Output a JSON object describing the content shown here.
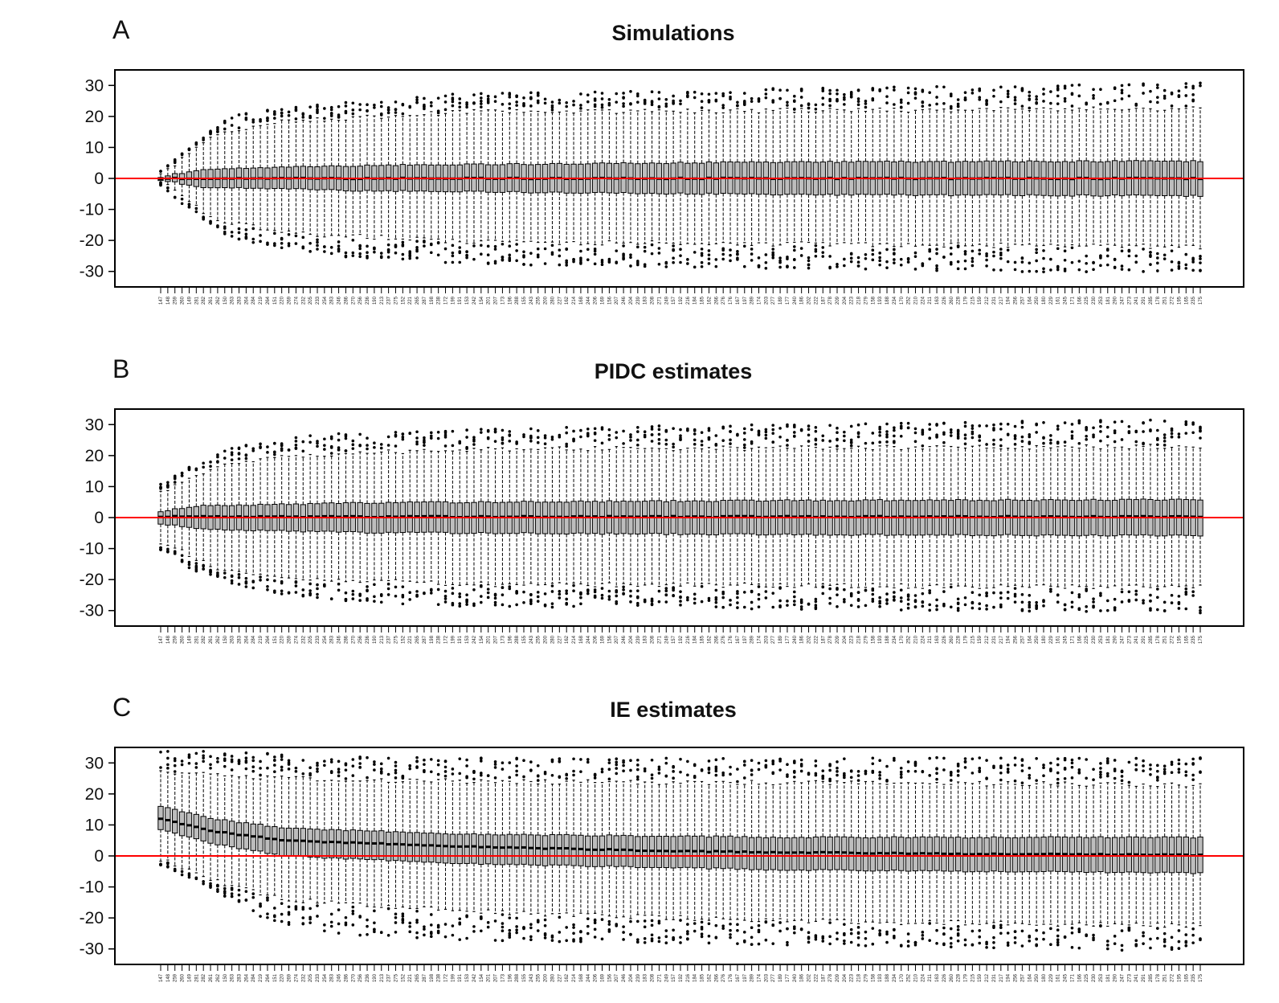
{
  "chart_data": [
    {
      "type": "boxplot",
      "panel_label": "A",
      "title": "Simulations",
      "xlabel": "",
      "ylabel": "",
      "ylim": [
        -35,
        35
      ],
      "yticks": [
        30,
        20,
        10,
        0,
        -10,
        -20,
        -30
      ],
      "ytick_labels": [
        "30",
        "20",
        "10",
        "0",
        "-10",
        "-20",
        "-30"
      ],
      "reference_line": {
        "y": 0,
        "color": "#ff0000"
      },
      "categories": [
        "147",
        "148",
        "259",
        "260",
        "149",
        "281",
        "282",
        "261",
        "262",
        "150",
        "263",
        "283",
        "264",
        "284",
        "219",
        "264",
        "151",
        "220",
        "269",
        "274",
        "232",
        "205",
        "233",
        "254",
        "283",
        "246",
        "286",
        "270",
        "256",
        "236",
        "190",
        "213",
        "237",
        "275",
        "152",
        "221",
        "265",
        "287",
        "198",
        "238",
        "172",
        "199",
        "191",
        "153",
        "242",
        "154",
        "201",
        "207",
        "173",
        "196",
        "288",
        "155",
        "243",
        "255",
        "200",
        "280",
        "227",
        "162",
        "214",
        "168",
        "244",
        "206",
        "169",
        "156",
        "207",
        "246",
        "204",
        "239",
        "183",
        "208",
        "271",
        "249",
        "157",
        "192",
        "216",
        "184",
        "185",
        "162",
        "266",
        "276",
        "176",
        "167",
        "197",
        "289",
        "174",
        "203",
        "277",
        "189",
        "177",
        "240",
        "186",
        "202",
        "222",
        "187",
        "278",
        "209",
        "204",
        "223",
        "218",
        "279",
        "158",
        "193",
        "188",
        "234",
        "170",
        "252",
        "210",
        "224",
        "211",
        "163",
        "226",
        "260",
        "228",
        "179",
        "215",
        "159",
        "212",
        "231",
        "217",
        "194",
        "256",
        "257",
        "164",
        "250",
        "180",
        "229",
        "161",
        "245",
        "171",
        "166",
        "225",
        "230",
        "253",
        "181",
        "290",
        "247",
        "273",
        "241",
        "291",
        "285",
        "178",
        "251",
        "272",
        "195",
        "165",
        "235",
        "175"
      ],
      "envelope": {
        "median": [
          [
            0,
            0
          ],
          [
            1,
            0
          ]
        ],
        "q3": [
          [
            0,
            0.5
          ],
          [
            0.04,
            3.0
          ],
          [
            0.2,
            4.2
          ],
          [
            0.6,
            5.3
          ],
          [
            1,
            5.6
          ]
        ],
        "q1": [
          [
            0,
            -0.5
          ],
          [
            0.04,
            -2.8
          ],
          [
            0.2,
            -4.0
          ],
          [
            0.6,
            -5.2
          ],
          [
            1,
            -5.6
          ]
        ],
        "whisker_hi": [
          [
            0,
            1
          ],
          [
            0.02,
            6
          ],
          [
            0.05,
            14
          ],
          [
            0.12,
            18.5
          ],
          [
            0.3,
            21.5
          ],
          [
            1,
            22.5
          ]
        ],
        "whisker_lo": [
          [
            0,
            -1
          ],
          [
            0.02,
            -6
          ],
          [
            0.05,
            -13
          ],
          [
            0.12,
            -17.5
          ],
          [
            0.3,
            -20.5
          ],
          [
            1,
            -22
          ]
        ],
        "out_hi_max": [
          [
            0,
            1.5
          ],
          [
            0.03,
            10
          ],
          [
            0.07,
            20
          ],
          [
            0.15,
            23
          ],
          [
            0.3,
            27
          ],
          [
            1,
            30
          ]
        ],
        "out_lo_min": [
          [
            0,
            -1.5
          ],
          [
            0.03,
            -10
          ],
          [
            0.07,
            -19
          ],
          [
            0.15,
            -24
          ],
          [
            0.3,
            -27
          ],
          [
            1,
            -30
          ]
        ]
      }
    },
    {
      "type": "boxplot",
      "panel_label": "B",
      "title": "PIDC estimates",
      "xlabel": "",
      "ylabel": "",
      "ylim": [
        -35,
        35
      ],
      "yticks": [
        30,
        20,
        10,
        0,
        -10,
        -20,
        -30
      ],
      "ytick_labels": [
        "30",
        "20",
        "10",
        "0",
        "-10",
        "-20",
        "-30"
      ],
      "reference_line": {
        "y": 0,
        "color": "#ff0000"
      },
      "categories": [
        "147",
        "148",
        "259",
        "260",
        "149",
        "281",
        "282",
        "261",
        "262",
        "150",
        "263",
        "283",
        "264",
        "284",
        "219",
        "264",
        "151",
        "220",
        "269",
        "274",
        "232",
        "205",
        "233",
        "254",
        "283",
        "246",
        "286",
        "270",
        "256",
        "236",
        "190",
        "213",
        "237",
        "275",
        "152",
        "221",
        "265",
        "287",
        "198",
        "238",
        "172",
        "199",
        "191",
        "153",
        "242",
        "154",
        "201",
        "207",
        "173",
        "196",
        "288",
        "155",
        "243",
        "255",
        "200",
        "280",
        "227",
        "162",
        "214",
        "168",
        "244",
        "206",
        "169",
        "156",
        "207",
        "246",
        "204",
        "239",
        "183",
        "208",
        "271",
        "249",
        "157",
        "192",
        "216",
        "184",
        "185",
        "162",
        "266",
        "276",
        "176",
        "167",
        "197",
        "289",
        "174",
        "203",
        "277",
        "189",
        "177",
        "240",
        "186",
        "202",
        "222",
        "187",
        "278",
        "209",
        "204",
        "223",
        "218",
        "279",
        "158",
        "193",
        "188",
        "234",
        "170",
        "252",
        "210",
        "224",
        "211",
        "163",
        "226",
        "260",
        "228",
        "179",
        "215",
        "159",
        "212",
        "231",
        "217",
        "194",
        "256",
        "257",
        "164",
        "250",
        "180",
        "229",
        "161",
        "245",
        "171",
        "166",
        "225",
        "230",
        "253",
        "181",
        "290",
        "247",
        "273",
        "241",
        "291",
        "285",
        "178",
        "251",
        "272",
        "195",
        "165",
        "235",
        "175"
      ],
      "envelope": {
        "median": [
          [
            0,
            0.3
          ],
          [
            1,
            0.3
          ]
        ],
        "q3": [
          [
            0,
            2.0
          ],
          [
            0.04,
            3.8
          ],
          [
            0.2,
            4.8
          ],
          [
            0.6,
            5.5
          ],
          [
            1,
            5.8
          ]
        ],
        "q1": [
          [
            0,
            -2.0
          ],
          [
            0.04,
            -3.8
          ],
          [
            0.2,
            -4.8
          ],
          [
            0.6,
            -5.5
          ],
          [
            1,
            -5.8
          ]
        ],
        "whisker_hi": [
          [
            0,
            8
          ],
          [
            0.02,
            11
          ],
          [
            0.05,
            16
          ],
          [
            0.12,
            20
          ],
          [
            0.3,
            22
          ],
          [
            1,
            23
          ]
        ],
        "whisker_lo": [
          [
            0,
            -8
          ],
          [
            0.02,
            -11
          ],
          [
            0.05,
            -16
          ],
          [
            0.12,
            -19.5
          ],
          [
            0.3,
            -21.5
          ],
          [
            1,
            -22.5
          ]
        ],
        "out_hi_max": [
          [
            0,
            10
          ],
          [
            0.03,
            16
          ],
          [
            0.07,
            22
          ],
          [
            0.15,
            26
          ],
          [
            0.3,
            28
          ],
          [
            1,
            31
          ]
        ],
        "out_lo_min": [
          [
            0,
            -10
          ],
          [
            0.03,
            -16
          ],
          [
            0.07,
            -21
          ],
          [
            0.15,
            -26
          ],
          [
            0.3,
            -28
          ],
          [
            1,
            -30
          ]
        ]
      }
    },
    {
      "type": "boxplot",
      "panel_label": "C",
      "title": "IE estimates",
      "xlabel": "",
      "ylabel": "",
      "ylim": [
        -35,
        35
      ],
      "yticks": [
        30,
        20,
        10,
        0,
        -10,
        -20,
        -30
      ],
      "ytick_labels": [
        "30",
        "20",
        "10",
        "0",
        "-10",
        "-20",
        "-30"
      ],
      "reference_line": {
        "y": 0,
        "color": "#ff0000"
      },
      "categories": [
        "147",
        "148",
        "259",
        "260",
        "149",
        "281",
        "282",
        "261",
        "262",
        "150",
        "263",
        "283",
        "264",
        "284",
        "219",
        "264",
        "151",
        "220",
        "269",
        "274",
        "232",
        "205",
        "233",
        "254",
        "283",
        "246",
        "286",
        "270",
        "256",
        "236",
        "190",
        "213",
        "237",
        "275",
        "152",
        "221",
        "265",
        "287",
        "198",
        "238",
        "172",
        "199",
        "191",
        "153",
        "242",
        "154",
        "201",
        "207",
        "173",
        "196",
        "288",
        "155",
        "243",
        "255",
        "200",
        "280",
        "227",
        "162",
        "214",
        "168",
        "244",
        "206",
        "169",
        "156",
        "207",
        "246",
        "204",
        "239",
        "183",
        "208",
        "271",
        "249",
        "157",
        "192",
        "216",
        "184",
        "185",
        "162",
        "266",
        "276",
        "176",
        "167",
        "197",
        "289",
        "174",
        "203",
        "277",
        "189",
        "177",
        "240",
        "186",
        "202",
        "222",
        "187",
        "278",
        "209",
        "204",
        "223",
        "218",
        "279",
        "158",
        "193",
        "188",
        "234",
        "170",
        "252",
        "210",
        "224",
        "211",
        "163",
        "226",
        "260",
        "228",
        "179",
        "215",
        "159",
        "212",
        "231",
        "217",
        "194",
        "256",
        "257",
        "164",
        "250",
        "180",
        "229",
        "161",
        "245",
        "171",
        "166",
        "225",
        "230",
        "253",
        "181",
        "290",
        "247",
        "273",
        "241",
        "291",
        "285",
        "178",
        "251",
        "272",
        "195",
        "165",
        "235",
        "175"
      ],
      "envelope": {
        "median": [
          [
            0,
            12
          ],
          [
            0.05,
            8
          ],
          [
            0.12,
            5
          ],
          [
            0.3,
            3
          ],
          [
            0.5,
            1.5
          ],
          [
            0.75,
            0.7
          ],
          [
            1,
            0.3
          ]
        ],
        "q3": [
          [
            0,
            16
          ],
          [
            0.05,
            12
          ],
          [
            0.12,
            9
          ],
          [
            0.3,
            7
          ],
          [
            0.6,
            6
          ],
          [
            1,
            6
          ]
        ],
        "q1": [
          [
            0,
            8.5
          ],
          [
            0.05,
            4
          ],
          [
            0.12,
            0
          ],
          [
            0.3,
            -2.5
          ],
          [
            0.6,
            -4.5
          ],
          [
            1,
            -5.5
          ]
        ],
        "whisker_hi": [
          [
            0,
            27
          ],
          [
            0.05,
            26
          ],
          [
            0.12,
            25
          ],
          [
            0.3,
            24
          ],
          [
            1,
            23
          ]
        ],
        "whisker_lo": [
          [
            0,
            -1
          ],
          [
            0.05,
            -8
          ],
          [
            0.12,
            -14
          ],
          [
            0.3,
            -18
          ],
          [
            0.6,
            -21
          ],
          [
            1,
            -22.5
          ]
        ],
        "out_hi_max": [
          [
            0,
            33
          ],
          [
            0.05,
            33
          ],
          [
            0.2,
            31
          ],
          [
            1,
            31
          ]
        ],
        "out_lo_min": [
          [
            0,
            -2
          ],
          [
            0.05,
            -10
          ],
          [
            0.1,
            -20
          ],
          [
            0.2,
            -26
          ],
          [
            1,
            -30
          ]
        ]
      }
    }
  ]
}
